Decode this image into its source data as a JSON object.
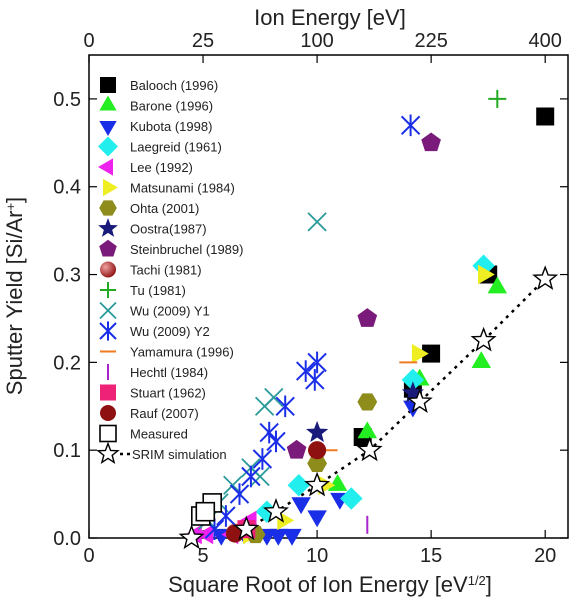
{
  "chart_data": {
    "type": "scatter",
    "xlabel": "Square Root of Ion Energy [eV",
    "xlabel_sup": "1/2",
    "xlabel_end": "]",
    "ylabel": "Sputter Yield [Si/Ar",
    "ylabel_sup": "+",
    "ylabel_end": "]",
    "top_label": "Ion Energy [eV]",
    "xlim": [
      0,
      21
    ],
    "ylim": [
      0,
      0.55
    ],
    "x_ticks": [
      "0",
      "5",
      "10",
      "15",
      "20"
    ],
    "x_tick_values": [
      0,
      5,
      10,
      15,
      20
    ],
    "y_ticks": [
      "0.0",
      "0.1",
      "0.2",
      "0.3",
      "0.4",
      "0.5"
    ],
    "y_tick_values": [
      0,
      0.1,
      0.2,
      0.3,
      0.4,
      0.5
    ],
    "top_ticks": [
      "0",
      "25",
      "100",
      "225",
      "400"
    ],
    "top_tick_values": [
      0,
      5,
      10,
      15,
      20
    ],
    "legend_position": "top-left",
    "series": [
      {
        "name": "Balooch (1996)",
        "marker": "square",
        "color": "#000000",
        "points": [
          [
            20,
            0.48
          ],
          [
            17.5,
            0.3
          ],
          [
            15,
            0.21
          ],
          [
            14.2,
            0.17
          ],
          [
            12,
            0.115
          ]
        ]
      },
      {
        "name": "Barone (1996)",
        "marker": "triangle-up",
        "color": "#22ee22",
        "points": [
          [
            17.9,
            0.285
          ],
          [
            17.2,
            0.2
          ],
          [
            14.5,
            0.18
          ],
          [
            12.2,
            0.12
          ],
          [
            10.9,
            0.06
          ]
        ]
      },
      {
        "name": "Kubota (1998)",
        "marker": "triangle-down",
        "color": "#1a2ee8",
        "points": [
          [
            14.2,
            0.15
          ],
          [
            10,
            0.025
          ],
          [
            11,
            0.045
          ],
          [
            9.3,
            0.04
          ],
          [
            8.3,
            0.004
          ],
          [
            7.8,
            0.004
          ],
          [
            6.8,
            0.006
          ],
          [
            5.8,
            0.004
          ],
          [
            8.9,
            0.004
          ]
        ]
      },
      {
        "name": "Laegreid (1961)",
        "marker": "diamond",
        "color": "#22eeee",
        "points": [
          [
            17.3,
            0.31
          ],
          [
            14.2,
            0.18
          ],
          [
            9.2,
            0.06
          ],
          [
            11.5,
            0.045
          ],
          [
            7.8,
            0.03
          ]
        ]
      },
      {
        "name": "Lee (1992)",
        "marker": "triangle-left",
        "color": "#ee22ee",
        "points": [
          [
            7.1,
            0.02
          ],
          [
            6.3,
            0.004
          ],
          [
            5.2,
            0.004
          ],
          [
            4.7,
            0.004
          ]
        ]
      },
      {
        "name": "Matsunami (1984)",
        "marker": "triangle-right",
        "color": "#eeee22",
        "points": [
          [
            17.3,
            0.3
          ],
          [
            14.4,
            0.21
          ],
          [
            10.3,
            0.06
          ],
          [
            8.5,
            0.02
          ],
          [
            7,
            0.004
          ]
        ]
      },
      {
        "name": "Ohta (2001)",
        "marker": "hexagon",
        "color": "#8e8c1a",
        "points": [
          [
            12.2,
            0.155
          ],
          [
            10,
            0.085
          ],
          [
            7.3,
            0.004
          ]
        ]
      },
      {
        "name": "Oostra(1987)",
        "marker": "star-filled",
        "color": "#1a1a7a",
        "points": [
          [
            10,
            0.12
          ],
          [
            14.2,
            0.165
          ]
        ]
      },
      {
        "name": "Steinbruchel (1989)",
        "marker": "pentagon",
        "color": "#7a1a7a",
        "points": [
          [
            15,
            0.45
          ],
          [
            12.2,
            0.25
          ],
          [
            9.1,
            0.1
          ]
        ]
      },
      {
        "name": "Tachi (1981)",
        "marker": "sphere",
        "color": "#8e1010",
        "points": [
          [
            10,
            0.1
          ],
          [
            6.4,
            0.006
          ]
        ]
      },
      {
        "name": "Tu (1981)",
        "marker": "plus",
        "color": "#22aa22",
        "points": [
          [
            17.9,
            0.5
          ]
        ]
      },
      {
        "name": "Wu (2009) Y1",
        "marker": "x",
        "color": "#2a9a9a",
        "points": [
          [
            10,
            0.36
          ],
          [
            7.7,
            0.15
          ],
          [
            8.1,
            0.16
          ],
          [
            7.1,
            0.08
          ],
          [
            6.3,
            0.06
          ],
          [
            5.7,
            0.04
          ],
          [
            5.2,
            0.02
          ],
          [
            7.5,
            0.07
          ]
        ]
      },
      {
        "name": "Wu (2009) Y2",
        "marker": "asterisk",
        "color": "#1a2ee8",
        "points": [
          [
            14.1,
            0.47
          ],
          [
            9.5,
            0.19
          ],
          [
            10,
            0.2
          ],
          [
            8.6,
            0.15
          ],
          [
            8.2,
            0.11
          ],
          [
            7.6,
            0.09
          ],
          [
            7.1,
            0.07
          ],
          [
            6.6,
            0.05
          ],
          [
            6,
            0.025
          ],
          [
            5.5,
            0.01
          ],
          [
            7.9,
            0.12
          ],
          [
            9.9,
            0.18
          ]
        ]
      },
      {
        "name": "Yamamura (1996)",
        "marker": "hline",
        "color": "#ee7a22",
        "points": [
          [
            14,
            0.2
          ],
          [
            10.5,
            0.1
          ]
        ]
      },
      {
        "name": "Hechtl (1984)",
        "marker": "vline",
        "color": "#aa22cc",
        "points": [
          [
            12.2,
            0.015
          ]
        ]
      },
      {
        "name": "Stuart (1962)",
        "marker": "square",
        "color": "#ee2277",
        "points": [
          [
            6.9,
            0.01
          ]
        ]
      },
      {
        "name": "Rauf (2007)",
        "marker": "circle",
        "color": "#8e1010",
        "points": [
          [
            10,
            0.1
          ],
          [
            6.4,
            0.005
          ]
        ]
      },
      {
        "name": "Measured",
        "marker": "square-open",
        "color": "#000000",
        "points": [
          [
            5.4,
            0.04
          ],
          [
            4.9,
            0.025
          ],
          [
            5.1,
            0.03
          ]
        ]
      },
      {
        "name": "SRIM simulation",
        "marker": "star-open",
        "color": "#000000",
        "line": "dotted",
        "points": [
          [
            4.5,
            0.0
          ],
          [
            6.9,
            0.01
          ],
          [
            8.2,
            0.03
          ],
          [
            10,
            0.06
          ],
          [
            12.3,
            0.1
          ],
          [
            14.5,
            0.155
          ],
          [
            17.3,
            0.225
          ],
          [
            20,
            0.295
          ]
        ]
      }
    ]
  }
}
